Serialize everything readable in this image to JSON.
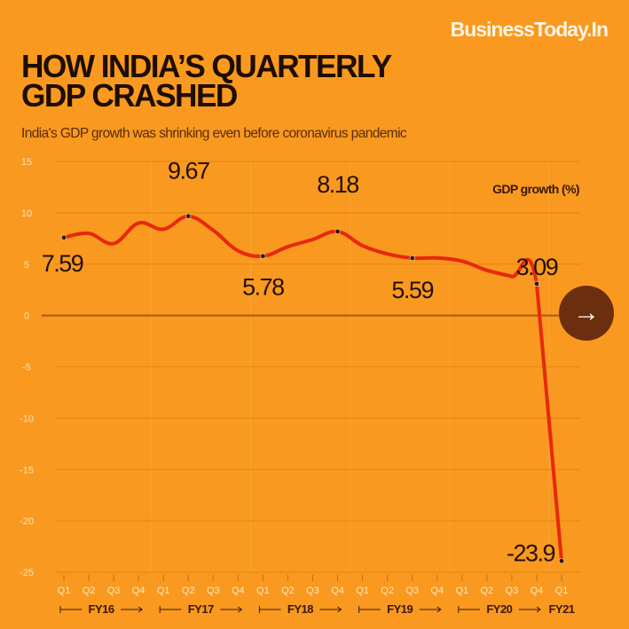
{
  "brand": "BusinessToday.In",
  "title_lines": [
    "HOW INDIA’S QUARTERLY",
    "GDP CRASHED"
  ],
  "subtitle": "India's GDP growth was shrinking even before coronavirus pandemic",
  "next_button": {
    "icon": "arrow-right-icon",
    "glyph": "→"
  },
  "colors": {
    "background": "#F9991F",
    "line": "#E8280C",
    "zero_line": "#A55A10",
    "gridline": "#E88A12",
    "button": "#6B2E0E"
  },
  "chart_data": {
    "type": "line",
    "title": "HOW INDIA’S QUARTERLY GDP CRASHED",
    "subtitle": "India's GDP growth was shrinking even before coronavirus pandemic",
    "xlabel": "",
    "ylabel": "",
    "legend": {
      "label": "GDP growth (%)",
      "placement": "top-right"
    },
    "ylim": [
      -25,
      15
    ],
    "yticks": [
      15,
      10,
      5,
      0,
      -5,
      -10,
      -15,
      -20,
      -25
    ],
    "grid": true,
    "x": [
      "Q1",
      "Q2",
      "Q3",
      "Q4",
      "Q1",
      "Q2",
      "Q3",
      "Q4",
      "Q1",
      "Q2",
      "Q3",
      "Q4",
      "Q1",
      "Q2",
      "Q3",
      "Q4",
      "Q1",
      "Q2",
      "Q3",
      "Q4",
      "Q1"
    ],
    "fiscal_years": [
      {
        "label": "FY16",
        "start": 0,
        "end": 3
      },
      {
        "label": "FY17",
        "start": 4,
        "end": 7
      },
      {
        "label": "FY18",
        "start": 8,
        "end": 11
      },
      {
        "label": "FY19",
        "start": 12,
        "end": 15
      },
      {
        "label": "FY20",
        "start": 16,
        "end": 19
      },
      {
        "label": "FY21",
        "start": 20,
        "end": 20
      }
    ],
    "series": [
      {
        "name": "GDP growth (%)",
        "values": [
          7.59,
          8.0,
          7.0,
          9.0,
          8.4,
          9.67,
          8.3,
          6.3,
          5.78,
          6.7,
          7.4,
          8.18,
          6.8,
          6.0,
          5.59,
          5.6,
          5.3,
          4.4,
          3.8,
          3.09,
          -23.9
        ]
      }
    ],
    "annotations": [
      {
        "index": 0,
        "text": "7.59"
      },
      {
        "index": 5,
        "text": "9.67"
      },
      {
        "index": 8,
        "text": "5.78"
      },
      {
        "index": 11,
        "text": "8.18"
      },
      {
        "index": 14,
        "text": "5.59"
      },
      {
        "index": 19,
        "text": "3.09"
      },
      {
        "index": 20,
        "text": "-23.9"
      }
    ]
  }
}
